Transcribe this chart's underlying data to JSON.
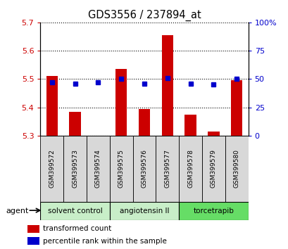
{
  "title": "GDS3556 / 237894_at",
  "samples": [
    "GSM399572",
    "GSM399573",
    "GSM399574",
    "GSM399575",
    "GSM399576",
    "GSM399577",
    "GSM399578",
    "GSM399579",
    "GSM399580"
  ],
  "transformed_counts": [
    5.51,
    5.385,
    5.3,
    5.535,
    5.395,
    5.655,
    5.375,
    5.315,
    5.495
  ],
  "percentile_ranks": [
    47,
    46,
    47,
    50,
    46,
    51,
    46,
    45,
    50
  ],
  "ylim": [
    5.3,
    5.7
  ],
  "yticks_left": [
    5.3,
    5.4,
    5.5,
    5.6,
    5.7
  ],
  "yticks_right": [
    0,
    25,
    50,
    75,
    100
  ],
  "bar_color": "#cc0000",
  "dot_color": "#0000cc",
  "bar_bottom": 5.3,
  "group_colors": [
    "#c8eec8",
    "#c8eec8",
    "#66dd66"
  ],
  "group_labels": [
    "solvent control",
    "angiotensin II",
    "torcetrapib"
  ],
  "group_ranges": [
    [
      0,
      3
    ],
    [
      3,
      6
    ],
    [
      6,
      9
    ]
  ],
  "tick_label_color_left": "#cc0000",
  "tick_label_color_right": "#0000cc",
  "legend_items": [
    "transformed count",
    "percentile rank within the sample"
  ],
  "group_label": "agent"
}
